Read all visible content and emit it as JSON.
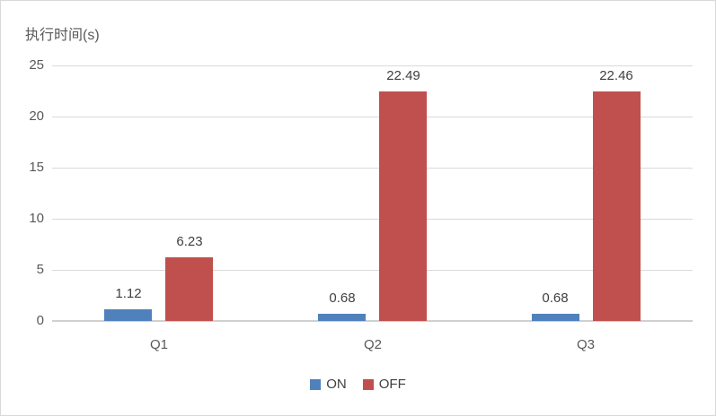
{
  "chart": {
    "title": "执行时间(s)"
  },
  "chart_data": {
    "type": "bar",
    "title": "执行时间(s)",
    "categories": [
      "Q1",
      "Q2",
      "Q3"
    ],
    "series": [
      {
        "name": "ON",
        "color": "#4F81BD",
        "values": [
          1.12,
          0.68,
          0.68
        ]
      },
      {
        "name": "OFF",
        "color": "#C0504D",
        "values": [
          6.23,
          22.49,
          22.46
        ]
      }
    ],
    "data_labels": {
      "ON": [
        "1.12",
        "0.68",
        "0.68"
      ],
      "OFF": [
        "6.23",
        "22.49",
        "22.46"
      ]
    },
    "xlabel": "",
    "ylabel": "执行时间(s)",
    "ylim": [
      0,
      25
    ],
    "yticks": [
      0,
      5,
      10,
      15,
      20,
      25
    ],
    "grid": true,
    "legend_position": "bottom"
  },
  "colors": {
    "grid": "#d9d9d9",
    "axis_zero": "#d0d0d0",
    "tick_text": "#595959",
    "label_text": "#404040",
    "border": "#d9d9d9",
    "background": "#ffffff"
  }
}
